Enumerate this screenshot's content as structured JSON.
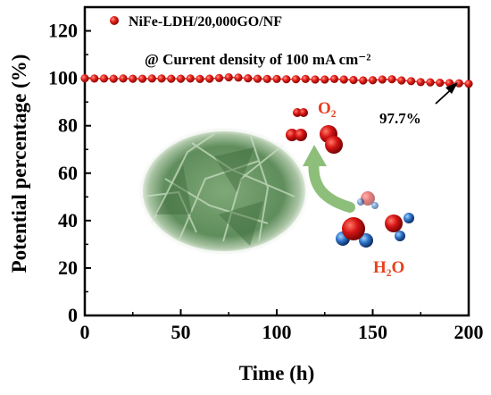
{
  "chart_data": {
    "type": "scatter",
    "title": "",
    "xlabel": "Time (h)",
    "ylabel": "Potential percentage (%)",
    "xlim": [
      0,
      200
    ],
    "ylim": [
      0,
      130
    ],
    "x_ticks": [
      "0",
      "50",
      "100",
      "150",
      "200"
    ],
    "y_ticks": [
      "0",
      "20",
      "40",
      "60",
      "80",
      "100",
      "120"
    ],
    "grid": false,
    "legend_position": "top-left",
    "series": [
      {
        "name": "NiFe-LDH/20,000GO/NF",
        "color": "#e11f1f",
        "x": [
          0,
          5,
          10,
          15,
          20,
          25,
          30,
          35,
          40,
          45,
          50,
          55,
          60,
          65,
          70,
          75,
          80,
          85,
          90,
          95,
          100,
          105,
          110,
          115,
          120,
          125,
          130,
          135,
          140,
          145,
          150,
          155,
          160,
          165,
          170,
          175,
          180,
          185,
          190,
          195,
          200
        ],
        "values": [
          100,
          99.9,
          99.9,
          99.8,
          99.9,
          99.8,
          99.8,
          99.9,
          99.9,
          99.8,
          99.8,
          99.9,
          99.7,
          99.8,
          100.1,
          100.4,
          100.3,
          100.0,
          99.8,
          99.7,
          99.7,
          99.6,
          99.6,
          99.7,
          99.5,
          99.5,
          99.7,
          99.5,
          99.3,
          99.1,
          99.2,
          99.5,
          99.6,
          99.1,
          98.8,
          98.4,
          98.3,
          98.1,
          98.0,
          97.9,
          97.7
        ]
      }
    ],
    "annotations": {
      "current_density": "@ Current density of 100 mA cm⁻²",
      "retention": "97.7%",
      "o2_label": "O₂",
      "h2o_label": "H₂O"
    }
  }
}
